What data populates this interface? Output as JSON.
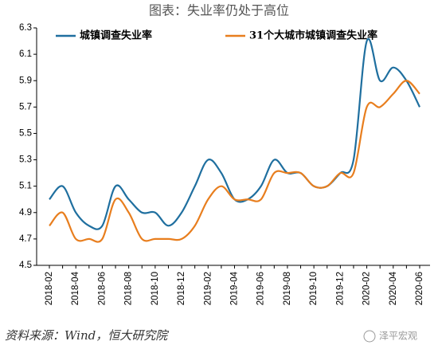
{
  "chart_data": {
    "type": "line",
    "title": "图表：失业率仍处于高位",
    "categories": [
      "2018-02",
      null,
      "2018-04",
      null,
      "2018-06",
      null,
      "2018-08",
      null,
      "2018-10",
      null,
      "2018-12",
      null,
      "2019-02",
      null,
      "2019-04",
      null,
      "2019-06",
      null,
      "2019-08",
      null,
      "2019-10",
      null,
      "2019-12",
      null,
      "2020-02",
      null,
      "2020-04",
      null,
      "2020-06"
    ],
    "series": [
      {
        "name": "城镇调查失业率",
        "color": "#1f6f9f",
        "values": [
          5.0,
          5.1,
          4.9,
          4.8,
          4.8,
          5.1,
          5.0,
          4.9,
          4.9,
          4.8,
          4.9,
          5.1,
          5.3,
          5.2,
          5.0,
          5.0,
          5.1,
          5.3,
          5.2,
          5.2,
          5.1,
          5.1,
          5.2,
          5.3,
          6.2,
          5.9,
          6.0,
          5.9,
          5.7
        ]
      },
      {
        "name": "31个大城市城镇调查失业率",
        "color": "#e87e1e",
        "values": [
          4.8,
          4.9,
          4.7,
          4.7,
          4.7,
          5.0,
          4.9,
          4.7,
          4.7,
          4.7,
          4.7,
          4.8,
          5.0,
          5.1,
          5.0,
          5.0,
          5.0,
          5.2,
          5.2,
          5.2,
          5.1,
          5.1,
          5.2,
          5.2,
          5.7,
          5.7,
          5.8,
          5.9,
          5.8
        ]
      }
    ],
    "ylim": [
      4.5,
      6.3
    ],
    "yticks": [
      4.5,
      4.7,
      4.9,
      5.1,
      5.3,
      5.5,
      5.7,
      5.9,
      6.1,
      6.3
    ],
    "source": "资料来源：Wind，恒大研究院"
  },
  "watermark": "泽平宏观"
}
